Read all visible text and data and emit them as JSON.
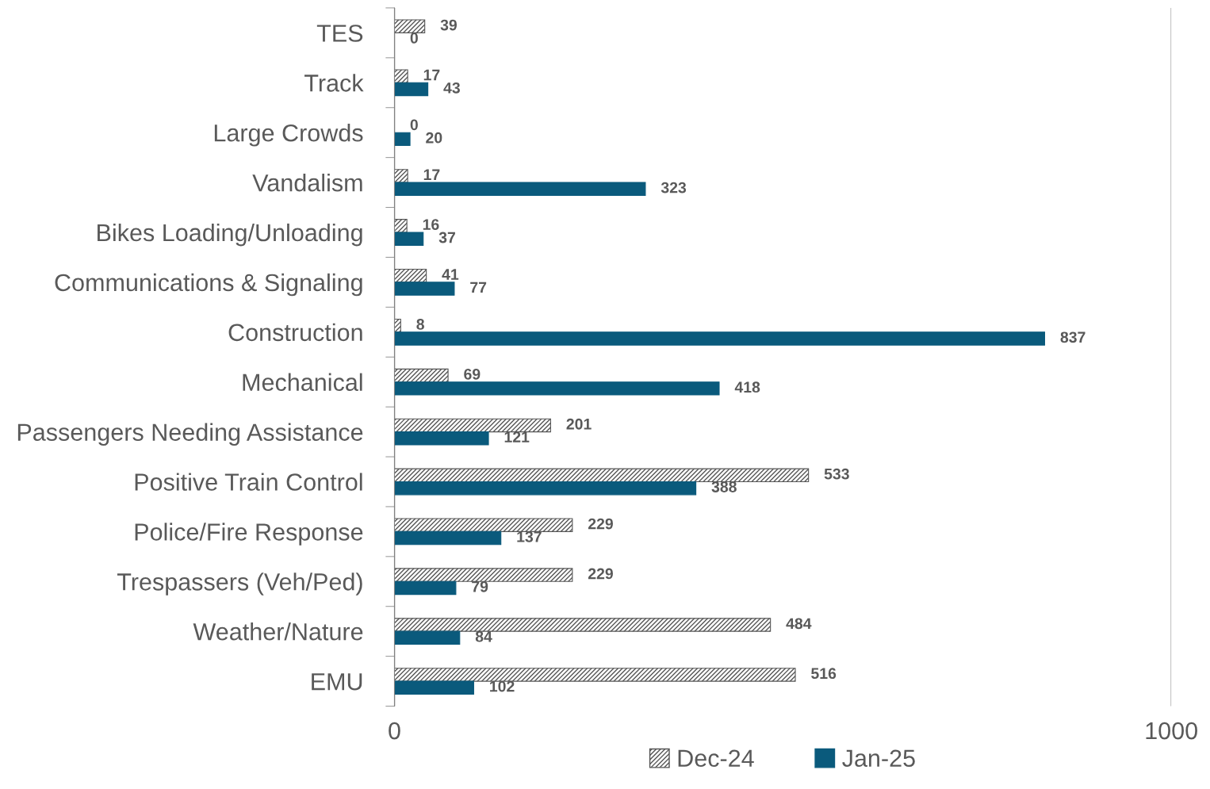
{
  "chart_data": {
    "type": "bar",
    "orientation": "horizontal",
    "categories": [
      "TES",
      "Track",
      "Large Crowds",
      "Vandalism",
      "Bikes Loading/Unloading",
      "Communications & Signaling",
      "Construction",
      "Mechanical",
      "Passengers Needing Assistance",
      "Positive Train Control",
      "Police/Fire Response",
      "Trespassers (Veh/Ped)",
      "Weather/Nature",
      "EMU"
    ],
    "series": [
      {
        "name": "Dec-24",
        "color": "#555555",
        "values": [
          39,
          17,
          0,
          17,
          16,
          41,
          8,
          69,
          201,
          533,
          229,
          229,
          484,
          516
        ]
      },
      {
        "name": "Jan-25",
        "color": "#0a5a7c",
        "values": [
          0,
          43,
          20,
          323,
          37,
          77,
          837,
          418,
          121,
          388,
          137,
          79,
          84,
          102
        ]
      }
    ],
    "xlim": [
      0,
      1000
    ],
    "xticks": [
      0,
      1000
    ],
    "grid": "x",
    "legend": "bottom",
    "data_labels": true
  }
}
